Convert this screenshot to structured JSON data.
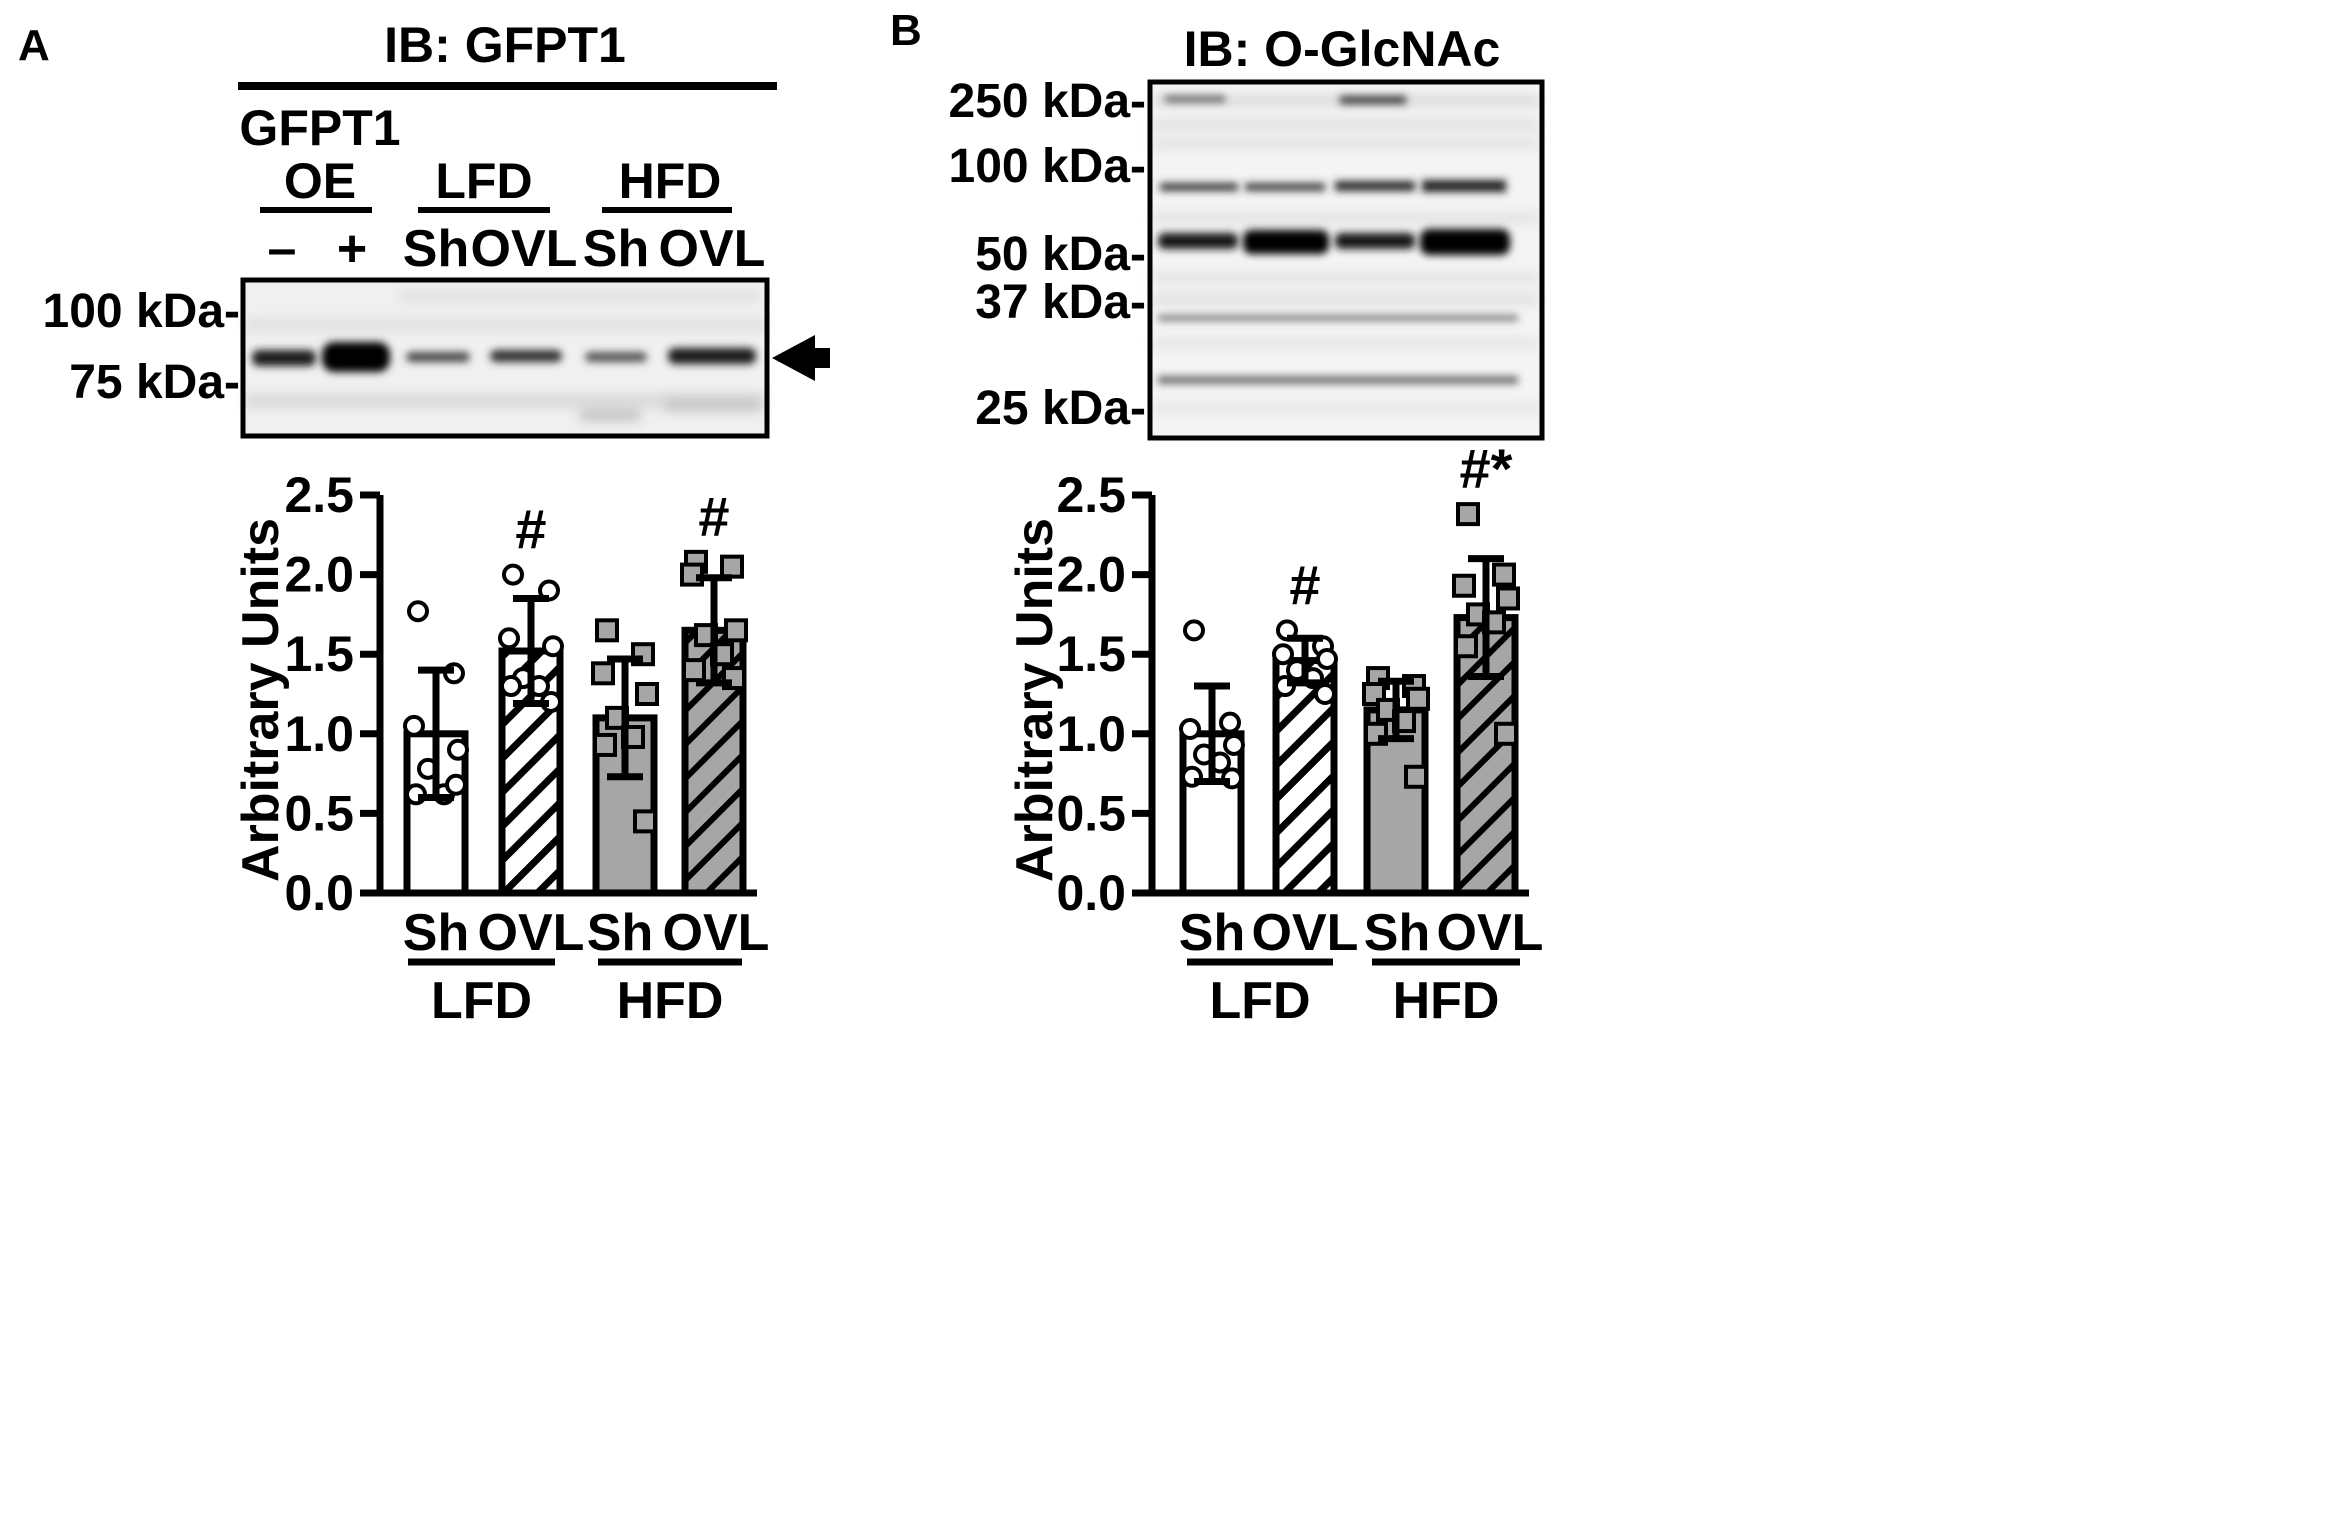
{
  "panel_a": {
    "label": "A",
    "blot": {
      "title": "IB: GFPT1",
      "oe_label_line1": "GFPT1",
      "oe_label_line2": "OE",
      "oe_minus": "–",
      "oe_plus": "+",
      "group_lfd": "LFD",
      "group_hfd": "HFD",
      "lane_sh_1": "Sh",
      "lane_ovl_1": "OVL",
      "lane_sh_2": "Sh",
      "lane_ovl_2": "OVL",
      "markers": [
        "100 kDa-",
        "75 kDa-"
      ]
    }
  },
  "panel_b": {
    "label": "B",
    "blot": {
      "title": "IB: O-GlcNAc",
      "markers": [
        "250 kDa-",
        "100 kDa-",
        "50 kDa-",
        "37 kDa-",
        "25 kDa-"
      ]
    }
  },
  "colors": {
    "sh_lfd": "#ffffff",
    "sh_hfd": "#a6a6a6",
    "ovl_lfd_hatch": "#ffffff",
    "ovl_hfd_hatch": "#a6a6a6",
    "ink": "#000000"
  },
  "chart_data": [
    {
      "type": "bar",
      "panel": "A",
      "ylabel": "Arbitrary Units",
      "ylim": [
        0,
        2.5
      ],
      "yticks": [
        "0.0",
        "0.5",
        "1.0",
        "1.5",
        "2.0",
        "2.5"
      ],
      "categories": [
        "Sh",
        "OVL",
        "Sh",
        "OVL"
      ],
      "groups": [
        {
          "name": "LFD",
          "categories": [
            "Sh",
            "OVL"
          ]
        },
        {
          "name": "HFD",
          "categories": [
            "Sh",
            "OVL"
          ]
        }
      ],
      "values": [
        1.0,
        1.52,
        1.1,
        1.65
      ],
      "sd": [
        0.4,
        0.33,
        0.37,
        0.33
      ],
      "annotations": [
        "",
        "#",
        "",
        "#"
      ],
      "points": [
        [
          1.77,
          1.38,
          1.05,
          0.9,
          0.78,
          0.62,
          0.62,
          0.68
        ],
        [
          2.0,
          1.9,
          1.6,
          1.55,
          1.35,
          1.3,
          1.3,
          1.2
        ],
        [
          1.65,
          1.5,
          1.38,
          1.25,
          1.1,
          0.98,
          0.93,
          0.45
        ],
        [
          2.08,
          2.05,
          2.0,
          1.65,
          1.62,
          1.5,
          1.4,
          1.35
        ]
      ]
    },
    {
      "type": "bar",
      "panel": "B",
      "ylabel": "Arbitrary Units",
      "ylim": [
        0,
        2.5
      ],
      "yticks": [
        "0.0",
        "0.5",
        "1.0",
        "1.5",
        "2.0",
        "2.5"
      ],
      "categories": [
        "Sh",
        "OVL",
        "Sh",
        "OVL"
      ],
      "groups": [
        {
          "name": "LFD",
          "categories": [
            "Sh",
            "OVL"
          ]
        },
        {
          "name": "HFD",
          "categories": [
            "Sh",
            "OVL"
          ]
        }
      ],
      "values": [
        1.0,
        1.46,
        1.15,
        1.73
      ],
      "sd": [
        0.3,
        0.14,
        0.18,
        0.37
      ],
      "annotations": [
        "",
        "#",
        "",
        "#*"
      ],
      "points": [
        [
          1.65,
          1.07,
          1.03,
          0.93,
          0.87,
          0.82,
          0.73,
          0.72
        ],
        [
          1.65,
          1.55,
          1.5,
          1.47,
          1.4,
          1.35,
          1.3,
          1.25
        ],
        [
          1.35,
          1.3,
          1.25,
          1.22,
          1.15,
          1.08,
          1.0,
          0.73
        ],
        [
          2.38,
          2.0,
          1.93,
          1.85,
          1.75,
          1.7,
          1.55,
          1.0
        ]
      ]
    }
  ]
}
